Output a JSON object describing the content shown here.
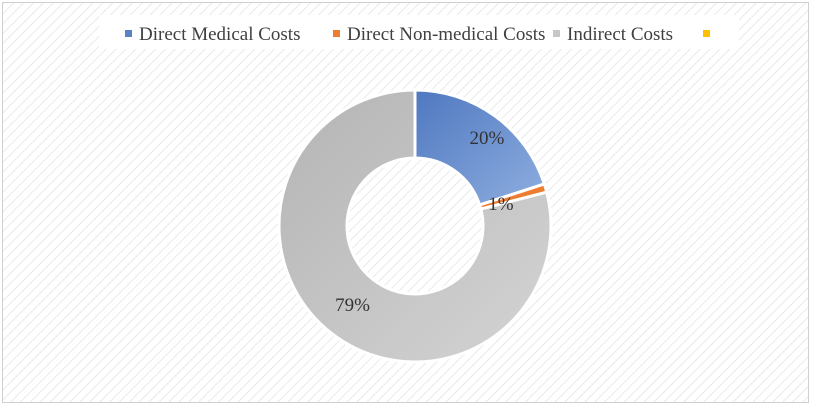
{
  "chart_data": {
    "type": "pie",
    "variant": "doughnut",
    "categories": [
      "Direct Medical Costs",
      "Direct Non-medical Costs",
      "Indirect Costs",
      ""
    ],
    "values": [
      20,
      1,
      79,
      0
    ],
    "value_labels": [
      "20%",
      "1%",
      "79%",
      ""
    ],
    "colors": [
      "#5b82c4",
      "#ed7d31",
      "#c6c6c6",
      "#ffc000"
    ],
    "legend_position": "top",
    "background": "diagonal-hatch"
  }
}
